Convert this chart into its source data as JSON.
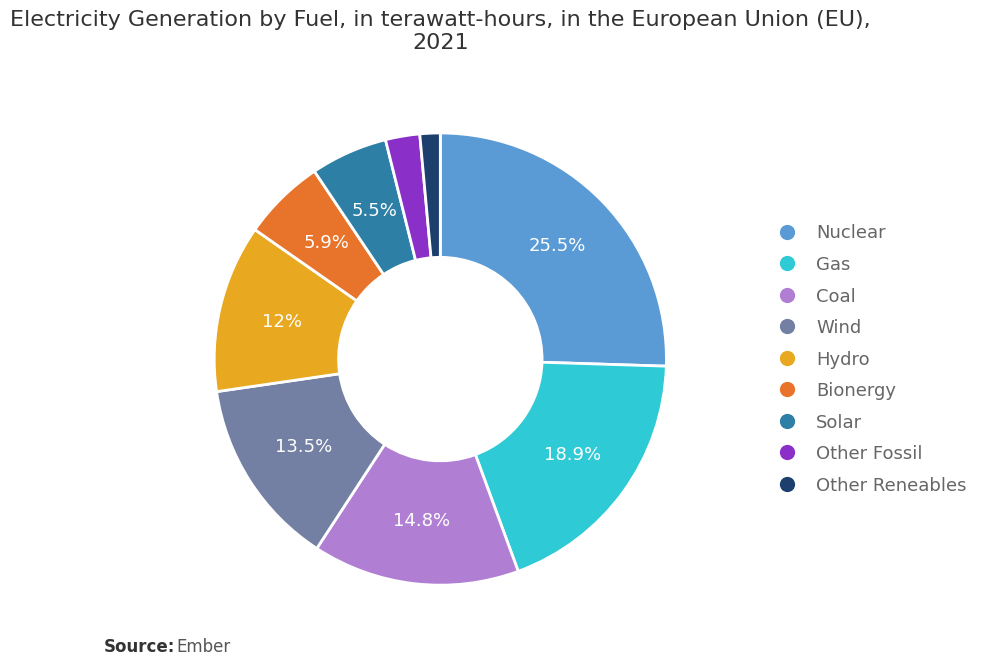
{
  "title": "Electricity Generation by Fuel, in terawatt-hours, in the European Union (EU),\n2021",
  "labels": [
    "Nuclear",
    "Gas",
    "Coal",
    "Wind",
    "Hydro",
    "Bionergy",
    "Solar",
    "Other Fossil",
    "Other Reneables"
  ],
  "values": [
    25.5,
    18.9,
    14.8,
    13.5,
    12.0,
    5.9,
    5.5,
    2.45,
    1.45
  ],
  "colors": [
    "#5B9BD5",
    "#2ECAD5",
    "#B07FD4",
    "#737FA3",
    "#E8A820",
    "#E8732A",
    "#2E7FA5",
    "#8B2FC9",
    "#1C3F6E"
  ],
  "pct_labels": [
    "25.5%",
    "18.9%",
    "14.8%",
    "13.5%",
    "12%",
    "5.9%",
    "5.5%",
    "",
    ""
  ],
  "source_bold": "Source:",
  "source_text": "Ember",
  "background_color": "#ffffff",
  "title_fontsize": 16,
  "label_fontsize": 13,
  "legend_fontsize": 13,
  "source_fontsize": 12
}
